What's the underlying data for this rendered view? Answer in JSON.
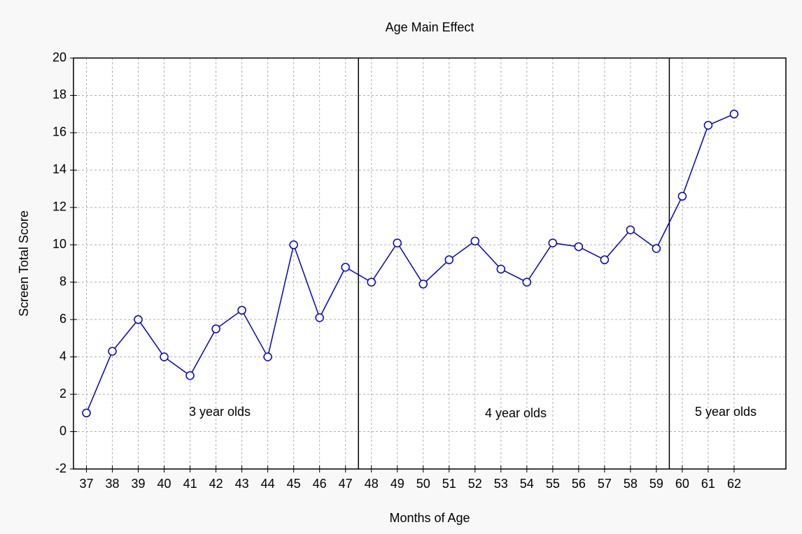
{
  "chart_data": {
    "type": "line",
    "title": "Age Main Effect",
    "x_label": "Months of Age",
    "y_label": "Screen Total Score",
    "x": [
      37,
      38,
      39,
      40,
      41,
      42,
      43,
      44,
      45,
      46,
      47,
      48,
      49,
      50,
      51,
      52,
      53,
      54,
      55,
      56,
      57,
      58,
      59,
      60,
      61,
      62
    ],
    "series": [
      {
        "color": "#0000cc",
        "values": [
          1,
          4.3,
          6,
          4,
          3,
          5.5,
          6.5,
          4,
          10,
          6.1,
          8.8,
          8,
          10.1,
          7.9,
          9.2,
          10.2,
          8.7,
          8,
          10.1,
          9.9,
          9.2,
          10.8,
          9.8,
          12.6,
          16.4,
          17
        ]
      }
    ],
    "xlim": [
      36.5,
      64
    ],
    "xticks": [
      37,
      38,
      39,
      40,
      41,
      42,
      43,
      44,
      45,
      46,
      47,
      48,
      49,
      50,
      51,
      52,
      53,
      54,
      55,
      56,
      57,
      58,
      59,
      60,
      61,
      62
    ],
    "ylim": [
      -2,
      20
    ],
    "yticks": [
      -2,
      0,
      2,
      4,
      6,
      8,
      10,
      12,
      14,
      16,
      18,
      20
    ],
    "grid": true,
    "dividers": [
      47.5,
      59.5
    ],
    "annotations": [
      "3 year olds",
      "4 year olds",
      "5 year olds"
    ]
  }
}
